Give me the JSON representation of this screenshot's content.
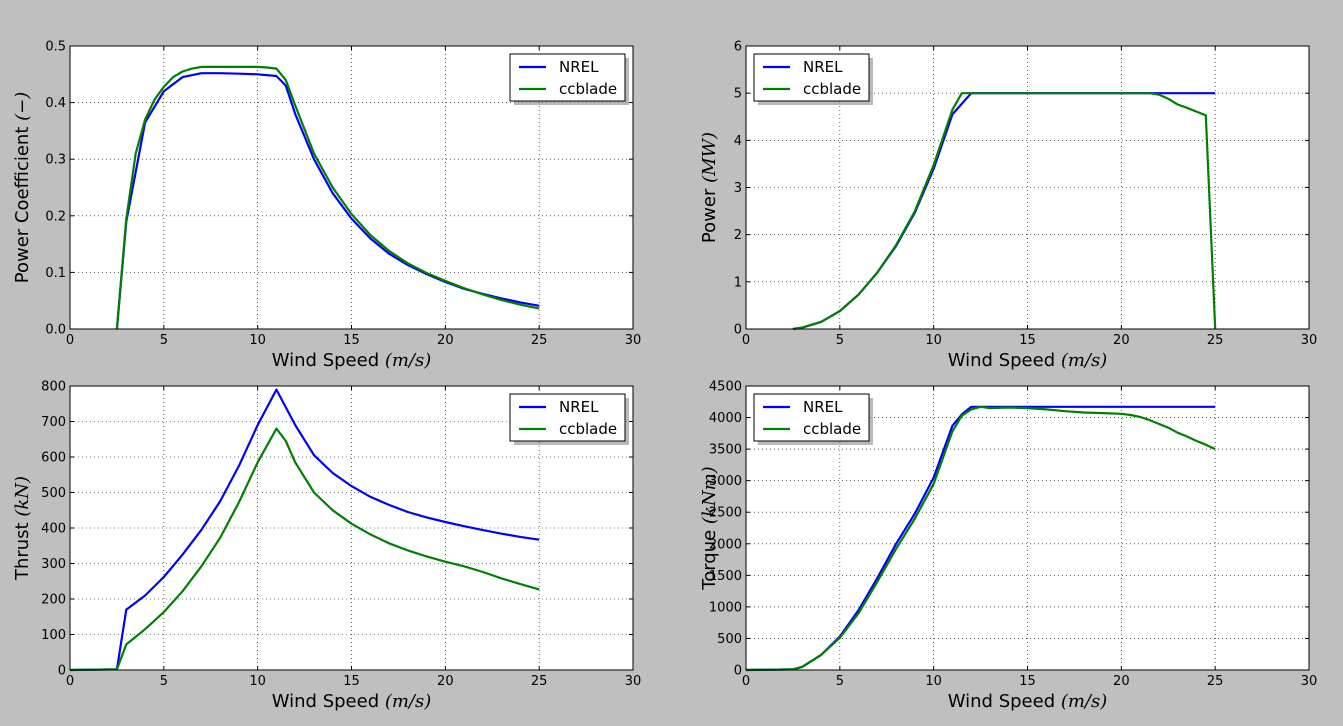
{
  "colors": {
    "figure_bg": "#bfbfbf",
    "axes_bg": "#ffffff",
    "nrel": "#0000ff",
    "ccblade": "#008000"
  },
  "chart_data": [
    {
      "type": "line",
      "xlabel": "Wind Speed",
      "xlabel_unit": "(m/s)",
      "ylabel": "Power Coefficient",
      "ylabel_unit": "(−)",
      "xlim": [
        0,
        30
      ],
      "ylim": [
        0,
        0.5
      ],
      "xticks": [
        "0",
        "5",
        "10",
        "15",
        "20",
        "25",
        "30"
      ],
      "yticks": [
        "0.0",
        "0.1",
        "0.2",
        "0.3",
        "0.4",
        "0.5"
      ],
      "grid": true,
      "legend_position": "top-right",
      "series": [
        {
          "name": "NREL",
          "color": "#0000ff",
          "x": [
            2.5,
            3,
            4,
            5,
            6,
            7,
            8,
            9,
            10,
            11,
            11.5,
            12,
            13,
            14,
            15,
            16,
            17,
            18,
            19,
            20,
            21,
            22,
            23,
            24,
            25
          ],
          "y": [
            0.0,
            0.19,
            0.365,
            0.42,
            0.445,
            0.452,
            0.452,
            0.451,
            0.45,
            0.447,
            0.43,
            0.38,
            0.3,
            0.24,
            0.195,
            0.16,
            0.133,
            0.113,
            0.097,
            0.083,
            0.071,
            0.062,
            0.054,
            0.047,
            0.041
          ]
        },
        {
          "name": "ccblade",
          "color": "#008000",
          "x": [
            2.5,
            3,
            3.5,
            4,
            4.5,
            5,
            5.5,
            6,
            6.5,
            7,
            8,
            9,
            10,
            10.5,
            11,
            11.5,
            12,
            13,
            14,
            15,
            16,
            17,
            18,
            19,
            20,
            21,
            22,
            23,
            24,
            25
          ],
          "y": [
            0.0,
            0.195,
            0.31,
            0.37,
            0.405,
            0.428,
            0.445,
            0.455,
            0.46,
            0.463,
            0.463,
            0.463,
            0.463,
            0.462,
            0.46,
            0.44,
            0.395,
            0.31,
            0.25,
            0.203,
            0.166,
            0.138,
            0.116,
            0.099,
            0.085,
            0.072,
            0.061,
            0.051,
            0.043,
            0.036
          ]
        }
      ]
    },
    {
      "type": "line",
      "xlabel": "Wind Speed",
      "xlabel_unit": "(m/s)",
      "ylabel": "Power",
      "ylabel_unit": "(MW)",
      "xlim": [
        0,
        30
      ],
      "ylim": [
        0,
        6
      ],
      "xticks": [
        "0",
        "5",
        "10",
        "15",
        "20",
        "25",
        "30"
      ],
      "yticks": [
        "0",
        "1",
        "2",
        "3",
        "4",
        "5",
        "6"
      ],
      "grid": true,
      "legend_position": "top-left",
      "series": [
        {
          "name": "NREL",
          "color": "#0000ff",
          "x": [
            2.5,
            3,
            4,
            5,
            6,
            7,
            8,
            9,
            10,
            11,
            12,
            13,
            14,
            15,
            16,
            17,
            18,
            19,
            20,
            21,
            22,
            23,
            24,
            25
          ],
          "y": [
            0.0,
            0.03,
            0.15,
            0.38,
            0.73,
            1.2,
            1.76,
            2.47,
            3.4,
            4.55,
            5.0,
            5.0,
            5.0,
            5.0,
            5.0,
            5.0,
            5.0,
            5.0,
            5.0,
            5.0,
            5.0,
            5.0,
            5.0,
            5.0
          ]
        },
        {
          "name": "ccblade",
          "color": "#008000",
          "x": [
            2.5,
            3,
            4,
            5,
            6,
            7,
            8,
            9,
            10,
            11,
            11.5,
            12,
            13,
            14,
            15,
            16,
            17,
            18,
            19,
            20,
            21,
            21.5,
            22,
            22.5,
            23,
            23.5,
            24,
            24.5,
            25
          ],
          "y": [
            0.0,
            0.03,
            0.15,
            0.38,
            0.73,
            1.2,
            1.78,
            2.5,
            3.48,
            4.65,
            5.0,
            5.0,
            5.0,
            5.0,
            5.0,
            5.0,
            5.0,
            5.0,
            5.0,
            5.0,
            5.0,
            5.0,
            4.97,
            4.88,
            4.76,
            4.69,
            4.61,
            4.53,
            0.0
          ]
        }
      ]
    },
    {
      "type": "line",
      "xlabel": "Wind Speed",
      "xlabel_unit": "(m/s)",
      "ylabel": "Thrust",
      "ylabel_unit": "(kN)",
      "xlim": [
        0,
        30
      ],
      "ylim": [
        0,
        800
      ],
      "xticks": [
        "0",
        "5",
        "10",
        "15",
        "20",
        "25",
        "30"
      ],
      "yticks": [
        "0",
        "100",
        "200",
        "300",
        "400",
        "500",
        "600",
        "700",
        "800"
      ],
      "grid": true,
      "legend_position": "top-right",
      "series": [
        {
          "name": "NREL",
          "color": "#0000ff",
          "x": [
            0,
            2.5,
            3,
            4,
            5,
            6,
            7,
            8,
            9,
            10,
            11,
            12,
            13,
            14,
            15,
            16,
            17,
            18,
            19,
            20,
            21,
            22,
            23,
            24,
            25
          ],
          "y": [
            0,
            2,
            170,
            210,
            262,
            325,
            395,
            475,
            575,
            690,
            790,
            690,
            605,
            555,
            518,
            488,
            465,
            445,
            430,
            417,
            405,
            394,
            384,
            375,
            367
          ]
        },
        {
          "name": "ccblade",
          "color": "#008000",
          "x": [
            0,
            2.5,
            3,
            4,
            5,
            6,
            7,
            8,
            9,
            10,
            11,
            11.5,
            12,
            13,
            14,
            15,
            16,
            17,
            18,
            19,
            20,
            21,
            22,
            23,
            24,
            25
          ],
          "y": [
            0,
            2,
            72,
            115,
            163,
            222,
            292,
            372,
            472,
            585,
            680,
            645,
            585,
            500,
            450,
            412,
            382,
            357,
            337,
            320,
            305,
            292,
            276,
            258,
            242,
            227
          ]
        }
      ]
    },
    {
      "type": "line",
      "xlabel": "Wind Speed",
      "xlabel_unit": "(m/s)",
      "ylabel": "Torque",
      "ylabel_unit": "(kNm)",
      "xlim": [
        0,
        30
      ],
      "ylim": [
        0,
        4500
      ],
      "xticks": [
        "0",
        "5",
        "10",
        "15",
        "20",
        "25",
        "30"
      ],
      "yticks": [
        "0",
        "500",
        "1000",
        "1500",
        "2000",
        "2500",
        "3000",
        "3500",
        "4000",
        "4500"
      ],
      "grid": true,
      "legend_position": "top-left",
      "series": [
        {
          "name": "NREL",
          "color": "#0000ff",
          "x": [
            0,
            2.5,
            3,
            4,
            5,
            6,
            7,
            8,
            9,
            10,
            11,
            11.5,
            12,
            13,
            14,
            15,
            16,
            17,
            18,
            19,
            20,
            21,
            22,
            23,
            24,
            25
          ],
          "y": [
            0,
            10,
            50,
            240,
            530,
            950,
            1460,
            2000,
            2480,
            3050,
            3870,
            4050,
            4170,
            4170,
            4170,
            4170,
            4170,
            4170,
            4170,
            4170,
            4170,
            4170,
            4170,
            4170,
            4170,
            4170
          ]
        },
        {
          "name": "ccblade",
          "color": "#008000",
          "x": [
            0,
            2.5,
            3,
            4,
            5,
            6,
            7,
            8,
            9,
            10,
            11,
            11.5,
            12,
            12.5,
            13,
            14,
            15,
            16,
            17,
            18,
            19,
            20,
            20.5,
            21,
            21.5,
            22,
            22.5,
            23,
            23.5,
            24,
            24.5,
            25
          ],
          "y": [
            0,
            10,
            50,
            240,
            510,
            900,
            1400,
            1920,
            2400,
            2950,
            3780,
            4030,
            4130,
            4170,
            4150,
            4160,
            4150,
            4130,
            4100,
            4080,
            4070,
            4060,
            4040,
            4010,
            3960,
            3900,
            3840,
            3760,
            3700,
            3630,
            3570,
            3500
          ]
        }
      ]
    }
  ]
}
